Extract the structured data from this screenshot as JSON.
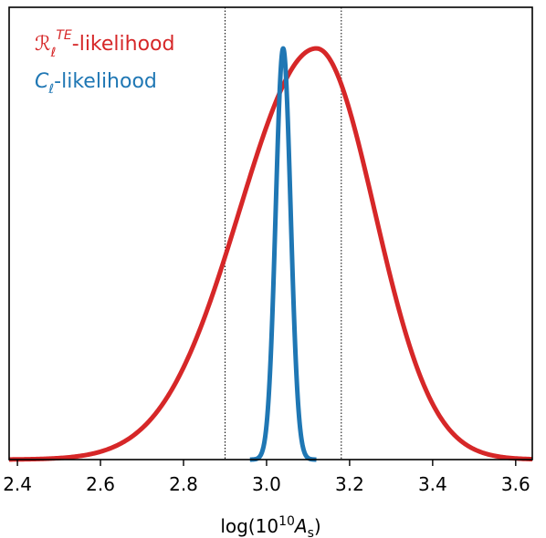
{
  "chart_data": {
    "type": "line",
    "xlabel": "log(10",
    "xlabel_sup": "10",
    "xlabel_var": "A",
    "xlabel_sub": "s",
    "xlabel_close": ")",
    "xlim": [
      2.38,
      3.64
    ],
    "ylim": [
      0,
      1.1
    ],
    "x_ticks": [
      "2.4",
      "2.6",
      "2.8",
      "3.0",
      "3.2",
      "3.4",
      "3.6"
    ],
    "x_tick_values": [
      2.4,
      2.6,
      2.8,
      3.0,
      3.2,
      3.4,
      3.6
    ],
    "y_ticks_visible": false,
    "vlines": [
      2.9,
      3.18
    ],
    "legend_position": "top-left",
    "series": [
      {
        "name": "R_ℓ^TE-likelihood",
        "label_main": "ℛ",
        "label_sub": "ℓ",
        "label_sup": "TE",
        "label_suffix": "-likelihood",
        "color": "#d62728",
        "peak": 3.12,
        "sigma_left": 0.185,
        "sigma_right": 0.14
      },
      {
        "name": "C_ℓ-likelihood",
        "label_main": "C",
        "label_sub": "ℓ",
        "label_suffix": "-likelihood",
        "color": "#1f77b4",
        "peak": 3.04,
        "sigma": 0.018,
        "x_min": 2.96,
        "x_max": 3.12
      }
    ]
  }
}
